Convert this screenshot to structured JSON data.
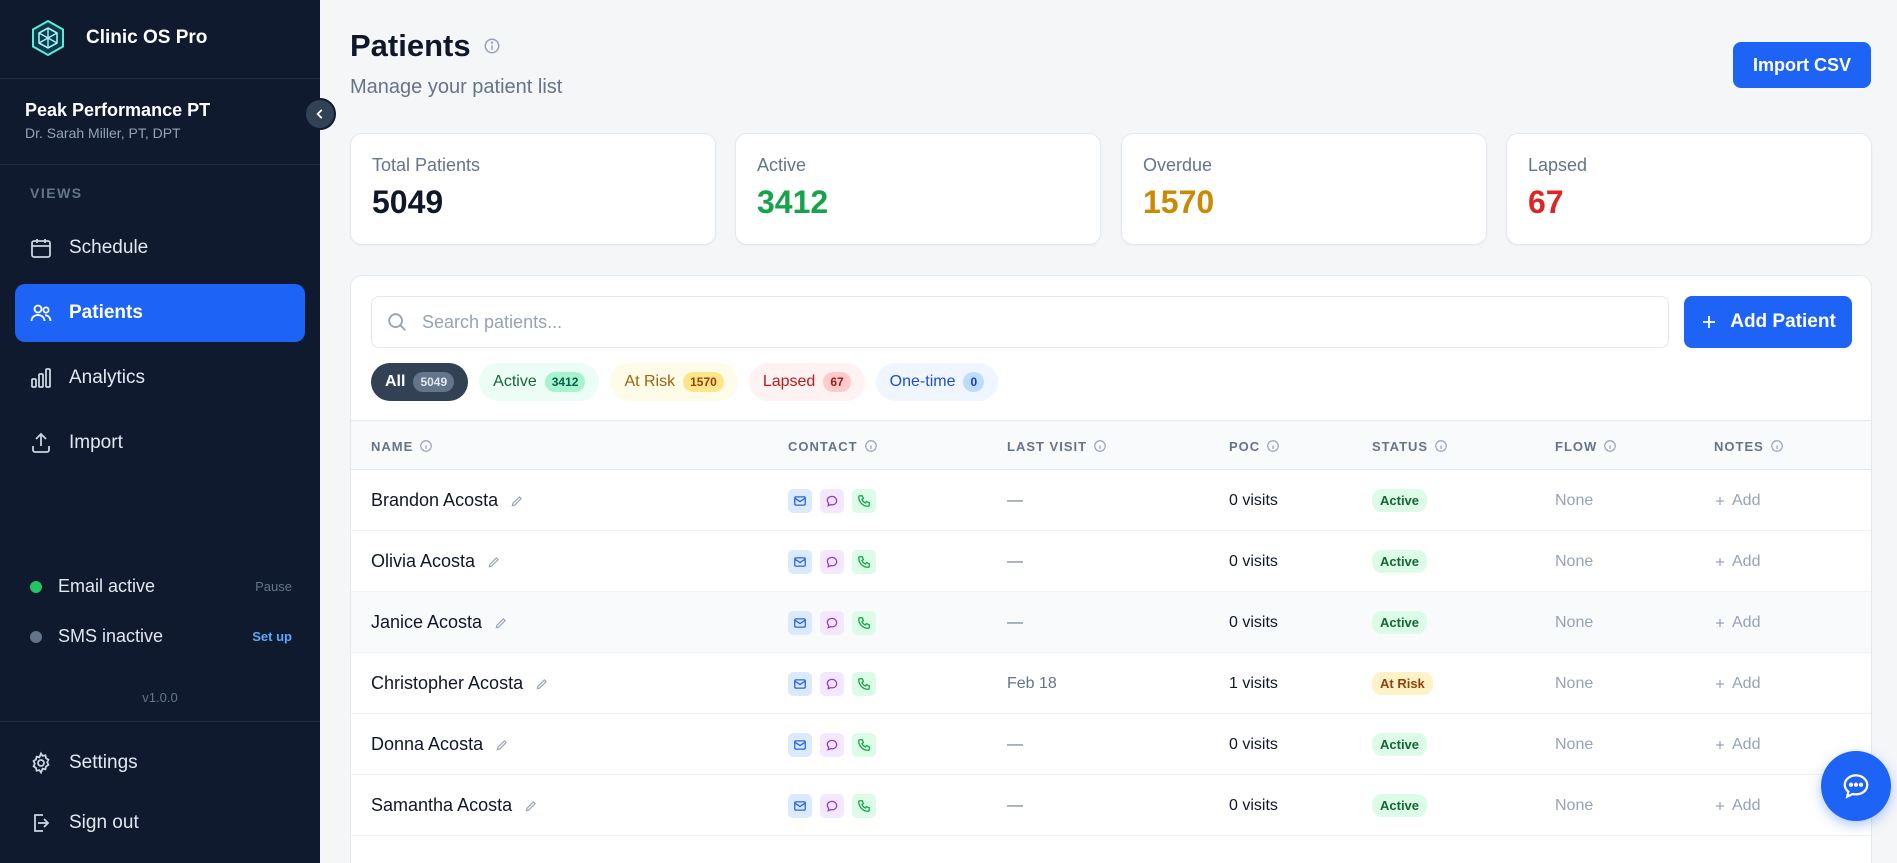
{
  "brand": {
    "name": "Clinic OS Pro"
  },
  "clinic": {
    "name": "Peak Performance PT",
    "doctor": "Dr. Sarah Miller, PT, DPT"
  },
  "sidebar": {
    "section_label": "VIEWS",
    "items": [
      {
        "label": "Schedule",
        "icon": "calendar-icon"
      },
      {
        "label": "Patients",
        "icon": "users-icon",
        "active": true
      },
      {
        "label": "Analytics",
        "icon": "bar-chart-icon"
      },
      {
        "label": "Import",
        "icon": "upload-icon"
      }
    ],
    "status": [
      {
        "label": "Email active",
        "action": "Pause",
        "dot": "#22c55e",
        "action_color": "#64748b"
      },
      {
        "label": "SMS inactive",
        "action": "Set up",
        "dot": "#64748b",
        "action_color": "#60a5fa"
      }
    ],
    "version": "v1.0.0",
    "footer": [
      {
        "label": "Settings",
        "icon": "gear-icon"
      },
      {
        "label": "Sign out",
        "icon": "sign-out-icon"
      }
    ]
  },
  "header": {
    "title": "Patients",
    "subtitle": "Manage your patient list",
    "import_label": "Import CSV"
  },
  "stats": [
    {
      "label": "Total Patients",
      "value": "5049",
      "color": "#0f172a"
    },
    {
      "label": "Active",
      "value": "3412",
      "color": "#16a34a"
    },
    {
      "label": "Overdue",
      "value": "1570",
      "color": "#ca8a04"
    },
    {
      "label": "Lapsed",
      "value": "67",
      "color": "#dc2626"
    }
  ],
  "search": {
    "placeholder": "Search patients...",
    "value": ""
  },
  "add_patient_label": "Add Patient",
  "filters": [
    {
      "label": "All",
      "count": "5049",
      "active": true
    },
    {
      "label": "Active",
      "count": "3412"
    },
    {
      "label": "At Risk",
      "count": "1570"
    },
    {
      "label": "Lapsed",
      "count": "67"
    },
    {
      "label": "One-time",
      "count": "0"
    }
  ],
  "table": {
    "columns": [
      "NAME",
      "CONTACT",
      "LAST VISIT",
      "POC",
      "STATUS",
      "FLOW",
      "NOTES"
    ],
    "add_note_label": "Add",
    "rows": [
      {
        "name": "Brandon Acosta",
        "last_visit": "—",
        "poc": "0 visits",
        "status": "Active",
        "flow": "None"
      },
      {
        "name": "Olivia Acosta",
        "last_visit": "—",
        "poc": "0 visits",
        "status": "Active",
        "flow": "None"
      },
      {
        "name": "Janice Acosta",
        "last_visit": "—",
        "poc": "0 visits",
        "status": "Active",
        "flow": "None"
      },
      {
        "name": "Christopher Acosta",
        "last_visit": "Feb 18",
        "poc": "1 visits",
        "status": "At Risk",
        "flow": "None"
      },
      {
        "name": "Donna Acosta",
        "last_visit": "—",
        "poc": "0 visits",
        "status": "Active",
        "flow": "None"
      },
      {
        "name": "Samantha Acosta",
        "last_visit": "—",
        "poc": "0 visits",
        "status": "Active",
        "flow": "None"
      }
    ]
  }
}
